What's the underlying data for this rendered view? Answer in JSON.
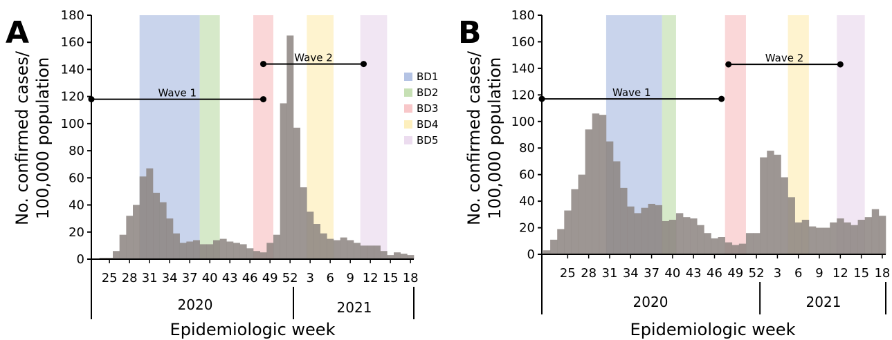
{
  "colors": {
    "bar": "#8c8480",
    "axis": "#000000",
    "BD1": "#b4c3e4",
    "BD2": "#c6e0b4",
    "BD3": "#f8c7c9",
    "BD4": "#fdefbd",
    "BD5": "#ecdcef"
  },
  "chart_data": [
    {
      "panel": "A",
      "type": "bar",
      "ylabel_line1": "No. confirmed cases/",
      "ylabel_line2": "100,000 population",
      "xlabel": "Epidemiologic week",
      "ylim": [
        0,
        180
      ],
      "yticks": [
        0,
        20,
        40,
        60,
        80,
        100,
        120,
        140,
        160,
        180
      ],
      "xtick_labels": [
        "25",
        "28",
        "31",
        "34",
        "37",
        "40",
        "43",
        "46",
        "49",
        "52",
        "3",
        "6",
        "9",
        "12",
        "15",
        "18"
      ],
      "years": [
        "2020",
        "2021"
      ],
      "weeks": [
        "23",
        "24",
        "25",
        "26",
        "27",
        "28",
        "29",
        "30",
        "31",
        "32",
        "33",
        "34",
        "35",
        "36",
        "37",
        "38",
        "39",
        "40",
        "41",
        "42",
        "43",
        "44",
        "45",
        "46",
        "47",
        "48",
        "49",
        "50",
        "51",
        "52",
        "1",
        "2",
        "3",
        "4",
        "5",
        "6",
        "7",
        "8",
        "9",
        "10",
        "11",
        "12",
        "13",
        "14",
        "15",
        "16",
        "17",
        "18"
      ],
      "values": [
        0,
        1,
        1,
        6,
        18,
        32,
        40,
        61,
        67,
        49,
        42,
        30,
        19,
        12,
        13,
        14,
        11,
        11,
        14,
        15,
        13,
        12,
        11,
        8,
        6,
        5,
        12,
        18,
        115,
        165,
        97,
        53,
        35,
        26,
        19,
        15,
        14,
        16,
        14,
        12,
        10,
        10,
        10,
        6,
        3,
        5,
        4,
        3
      ],
      "bands": [
        {
          "name": "BD1",
          "start_week": "30",
          "end_week": "38"
        },
        {
          "name": "BD2",
          "start_week": "39",
          "end_week": "41"
        },
        {
          "name": "BD3",
          "start_week": "47",
          "end_week": "49"
        },
        {
          "name": "BD4",
          "start_week": "3",
          "end_week": "6"
        },
        {
          "name": "BD5",
          "start_week": "11",
          "end_week": "14"
        }
      ],
      "waves": [
        {
          "label": "Wave 1",
          "y": 118,
          "start_week": "23",
          "end_week": "48"
        },
        {
          "label": "Wave 2",
          "y": 144,
          "start_week": "48",
          "end_week": "11"
        }
      ],
      "legend": [
        "BD1",
        "BD2",
        "BD3",
        "BD4",
        "BD5"
      ],
      "legend_position": "right"
    },
    {
      "panel": "B",
      "type": "bar",
      "ylabel_line1": "No. confirmed cases/",
      "ylabel_line2": "100,000 population",
      "xlabel": "Epidemiologic week",
      "ylim": [
        0,
        180
      ],
      "yticks": [
        0,
        20,
        40,
        60,
        80,
        100,
        120,
        140,
        160,
        180
      ],
      "xtick_labels": [
        "25",
        "28",
        "31",
        "34",
        "37",
        "40",
        "43",
        "46",
        "49",
        "52",
        "3",
        "6",
        "9",
        "12",
        "15",
        "18"
      ],
      "years": [
        "2020",
        "2021"
      ],
      "weeks": [
        "22",
        "23",
        "24",
        "25",
        "26",
        "27",
        "28",
        "29",
        "30",
        "31",
        "32",
        "33",
        "34",
        "35",
        "36",
        "37",
        "38",
        "39",
        "40",
        "41",
        "42",
        "43",
        "44",
        "45",
        "46",
        "47",
        "48",
        "49",
        "50",
        "51",
        "52",
        "1",
        "2",
        "3",
        "4",
        "5",
        "6",
        "7",
        "8",
        "9",
        "10",
        "11",
        "12",
        "13",
        "14",
        "15",
        "16",
        "17",
        "18"
      ],
      "values": [
        3,
        11,
        19,
        33,
        49,
        60,
        94,
        106,
        105,
        85,
        70,
        50,
        36,
        31,
        35,
        38,
        37,
        25,
        26,
        31,
        28,
        27,
        22,
        16,
        12,
        13,
        9,
        7,
        8,
        16,
        16,
        73,
        78,
        75,
        58,
        43,
        24,
        26,
        21,
        20,
        20,
        24,
        27,
        24,
        22,
        26,
        28,
        34,
        29
      ],
      "bands": [
        {
          "name": "BD1",
          "start_week": "31",
          "end_week": "38"
        },
        {
          "name": "BD2",
          "start_week": "39",
          "end_week": "40"
        },
        {
          "name": "BD3",
          "start_week": "48",
          "end_week": "50"
        },
        {
          "name": "BD4",
          "start_week": "5",
          "end_week": "7"
        },
        {
          "name": "BD5",
          "start_week": "12",
          "end_week": "15"
        }
      ],
      "waves": [
        {
          "label": "Wave 1",
          "y": 117,
          "start_week": "22",
          "end_week": "47"
        },
        {
          "label": "Wave 2",
          "y": 143,
          "start_week": "48",
          "end_week": "12"
        }
      ]
    }
  ]
}
